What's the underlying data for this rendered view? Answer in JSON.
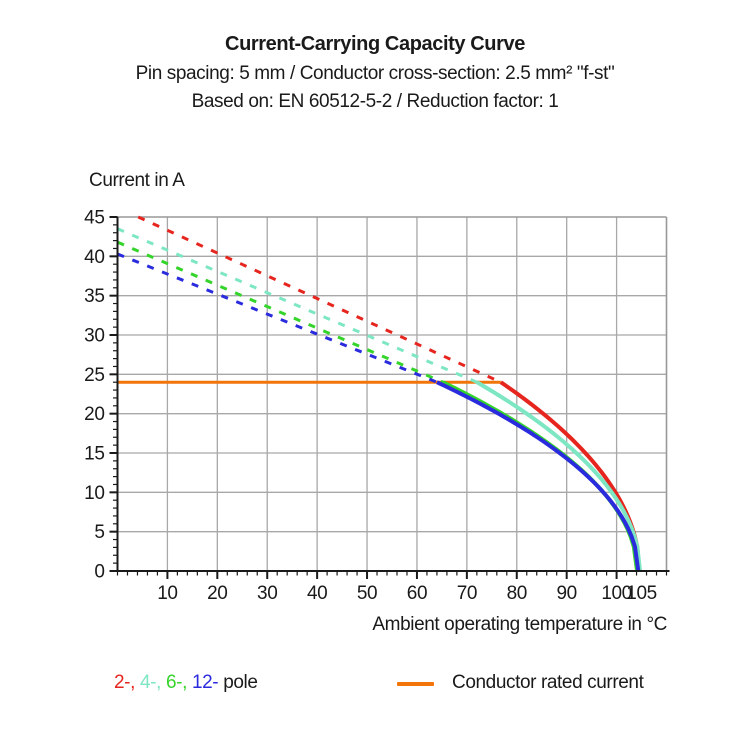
{
  "header": {
    "title": "Current-Carrying Capacity Curve",
    "subtitle1": "Pin spacing: 5 mm / Conductor cross-section: 2.5 mm² \"f-st\"",
    "subtitle2": "Based on: EN 60512-5-2 / Reduction factor: 1"
  },
  "chart_data": {
    "type": "line",
    "title": "Current-Carrying Capacity Curve",
    "xlabel": "Ambient operating temperature in °C",
    "ylabel": "Current in A",
    "xlim": [
      0,
      110
    ],
    "ylim": [
      0,
      45
    ],
    "x_major_ticks": [
      10,
      20,
      30,
      40,
      50,
      60,
      70,
      80,
      90,
      100,
      105
    ],
    "x_minor_step": 2,
    "y_major_ticks": [
      0,
      5,
      10,
      15,
      20,
      25,
      30,
      35,
      40,
      45
    ],
    "y_minor_step": 1,
    "grid": {
      "x_lines": [
        10,
        20,
        30,
        40,
        50,
        60,
        70,
        80,
        90,
        100
      ],
      "y_lines": [
        5,
        10,
        15,
        20,
        25,
        30,
        35,
        40
      ],
      "color": "#a8a8a8",
      "frame_color": "#999999"
    },
    "axis_color": "#1a1a1a",
    "rated_current": {
      "value_A": 24,
      "x_start": 0,
      "x_end": 76.8,
      "color": "#F2750A",
      "label": "Conductor rated current"
    },
    "series": [
      {
        "name": "2-pole",
        "legend": "2-,",
        "color": "#E6251E",
        "current_at_0C_A": 46.2,
        "derating_start_temp_C": 76.8,
        "zero_current_temp_C": 104.6
      },
      {
        "name": "4-pole",
        "legend": "4-,",
        "color": "#7DE6C3",
        "current_at_0C_A": 43.5,
        "derating_start_temp_C": 72.0,
        "zero_current_temp_C": 104.7
      },
      {
        "name": "6-pole",
        "legend": "6-,",
        "color": "#34D42B",
        "current_at_0C_A": 41.8,
        "derating_start_temp_C": 65.2,
        "zero_current_temp_C": 104.1
      },
      {
        "name": "12-pole",
        "legend": "12-",
        "color": "#2B2BDE",
        "current_at_0C_A": 40.3,
        "derating_start_temp_C": 64.0,
        "zero_current_temp_C": 104.35
      }
    ],
    "legend_suffix": "pole",
    "legend_suffix_color": "#1a1a1a",
    "line_styles": {
      "dashed_width": 3,
      "dash_array": "7 9",
      "solid_width": 4,
      "rated_width": 3
    }
  }
}
